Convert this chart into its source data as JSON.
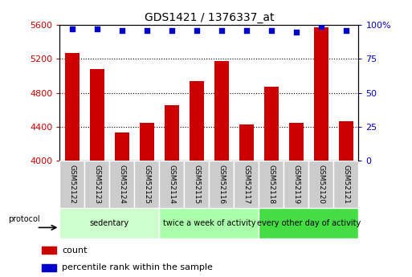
{
  "title": "GDS1421 / 1376337_at",
  "samples": [
    "GSM52122",
    "GSM52123",
    "GSM52124",
    "GSM52125",
    "GSM52114",
    "GSM52115",
    "GSM52116",
    "GSM52117",
    "GSM52118",
    "GSM52119",
    "GSM52120",
    "GSM52121"
  ],
  "counts": [
    5270,
    5080,
    4330,
    4450,
    4650,
    4940,
    5170,
    4430,
    4870,
    4450,
    5570,
    4460
  ],
  "percentile_ranks": [
    97,
    97,
    96,
    96,
    96,
    96,
    96,
    96,
    96,
    95,
    99,
    96
  ],
  "ylim_left": [
    4000,
    5600
  ],
  "ylim_right": [
    0,
    100
  ],
  "yticks_left": [
    4000,
    4400,
    4800,
    5200,
    5600
  ],
  "yticks_right": [
    0,
    25,
    50,
    75,
    100
  ],
  "bar_color": "#cc0000",
  "dot_color": "#0000cc",
  "groups": [
    {
      "label": "sedentary",
      "start": 0,
      "end": 4,
      "color": "#ccffcc"
    },
    {
      "label": "twice a week of activity",
      "start": 4,
      "end": 8,
      "color": "#aaffaa"
    },
    {
      "label": "every other day of activity",
      "start": 8,
      "end": 12,
      "color": "#44dd44"
    }
  ],
  "cell_color": "#cccccc",
  "protocol_label": "protocol",
  "legend_count_label": "count",
  "legend_percentile_label": "percentile rank within the sample",
  "left_tick_color": "#cc0000",
  "right_tick_color": "#0000cc",
  "gridline_yticks": [
    4400,
    4800,
    5200
  ],
  "bar_width": 0.6
}
